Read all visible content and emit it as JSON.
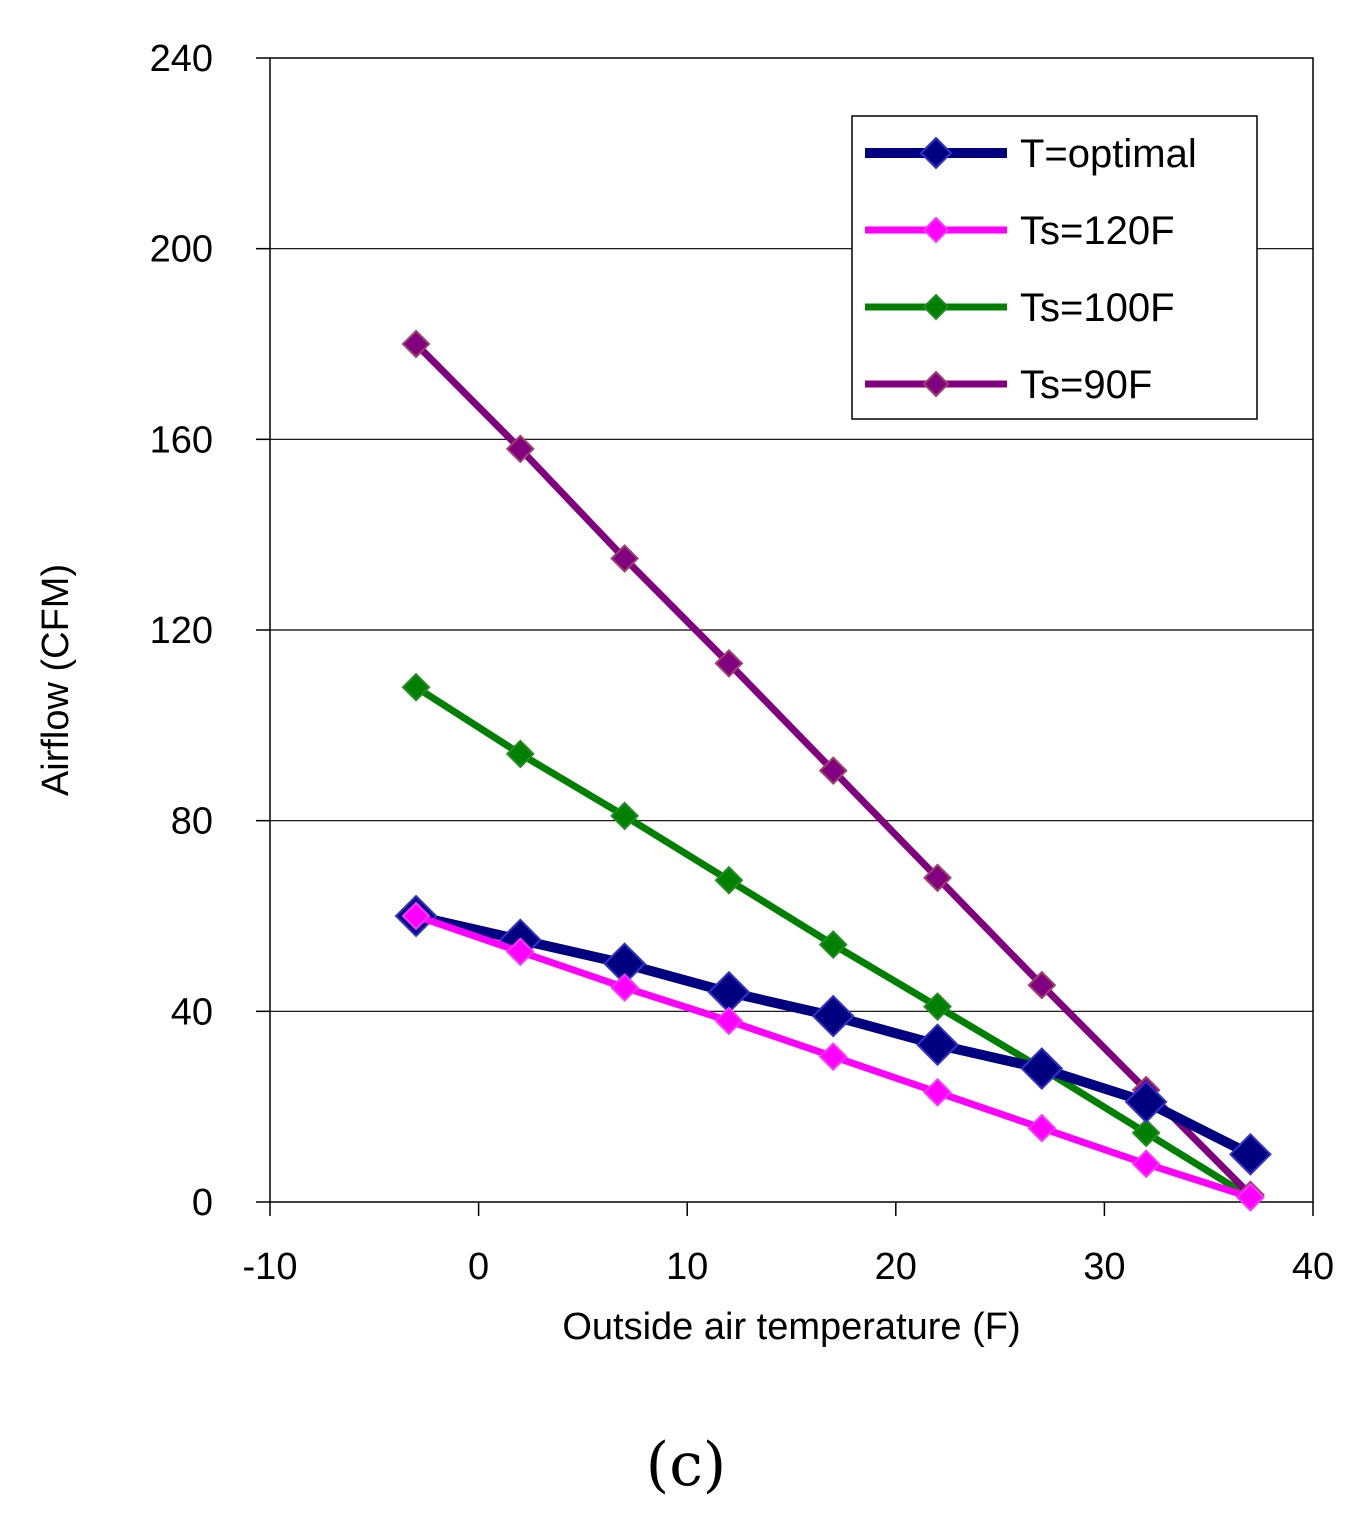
{
  "chart_data": {
    "type": "line",
    "title": "",
    "xlabel": "Outside air temperature (F)",
    "ylabel": "Airflow (CFM)",
    "xlim": [
      -10,
      40
    ],
    "ylim": [
      0,
      240
    ],
    "xticks": [
      -10,
      0,
      10,
      20,
      30,
      40
    ],
    "yticks": [
      0,
      40,
      80,
      120,
      160,
      200,
      240
    ],
    "grid": "horizontal",
    "legend": "top-right",
    "caption": "(c)",
    "x": [
      -3,
      2,
      7,
      12,
      17,
      22,
      27,
      32,
      37
    ],
    "series": [
      {
        "name": "T=optimal",
        "color": "#000080",
        "values": [
          60,
          55,
          50,
          44,
          39,
          33,
          28,
          21,
          10
        ]
      },
      {
        "name": "Ts=120F",
        "color": "#ff00ff",
        "values": [
          60,
          52.5,
          45,
          38,
          30.5,
          23,
          15.5,
          8,
          1
        ]
      },
      {
        "name": "Ts=100F",
        "color": "#008000",
        "values": [
          108,
          94,
          81,
          67.5,
          54,
          41,
          28,
          14.5,
          1
        ]
      },
      {
        "name": "Ts=90F",
        "color": "#800080",
        "values": [
          180,
          158,
          135,
          113,
          90.5,
          68,
          45.5,
          23.5,
          1.5
        ]
      }
    ]
  }
}
